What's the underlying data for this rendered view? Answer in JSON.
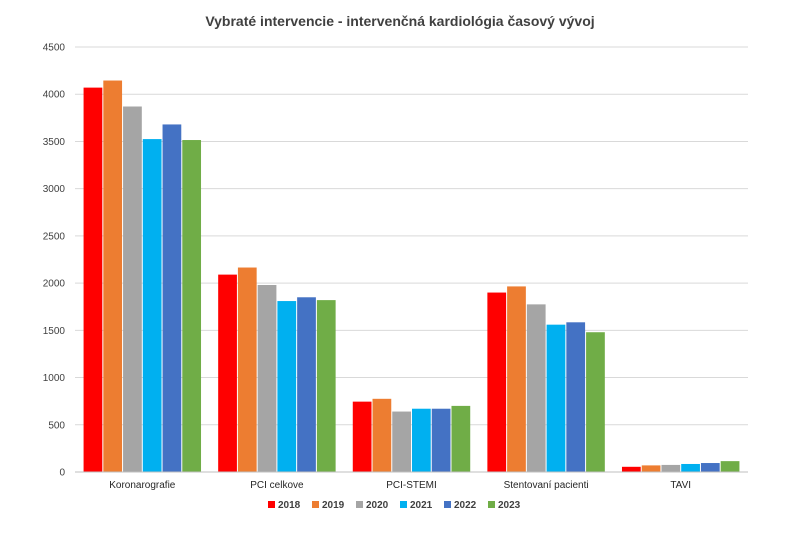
{
  "chart_data": {
    "type": "bar",
    "title": "Vybraté intervencie - intervenčná kardiológia časový vývoj",
    "xlabel": "",
    "ylabel": "",
    "ylim": [
      0,
      4500
    ],
    "yticks": [
      0,
      500,
      1000,
      1500,
      2000,
      2500,
      3000,
      3500,
      4000,
      4500
    ],
    "grid": true,
    "legend_position": "bottom",
    "categories": [
      "Koronarografie",
      "PCI celkove",
      "PCI-STEMI",
      "Stentovaní pacienti",
      "TAVI"
    ],
    "series": [
      {
        "name": "2018",
        "color": "#ff0000",
        "values": [
          4070,
          2090,
          745,
          1900,
          55
        ]
      },
      {
        "name": "2019",
        "color": "#ed7d31",
        "values": [
          4145,
          2165,
          775,
          1965,
          70
        ]
      },
      {
        "name": "2020",
        "color": "#a5a5a5",
        "values": [
          3870,
          1980,
          640,
          1775,
          75
        ]
      },
      {
        "name": "2021",
        "color": "#00b0f0",
        "values": [
          3525,
          1810,
          670,
          1560,
          85
        ]
      },
      {
        "name": "2022",
        "color": "#4472c4",
        "values": [
          3680,
          1850,
          670,
          1585,
          95
        ]
      },
      {
        "name": "2023",
        "color": "#70ad47",
        "values": [
          3515,
          1820,
          700,
          1480,
          115
        ]
      }
    ]
  }
}
